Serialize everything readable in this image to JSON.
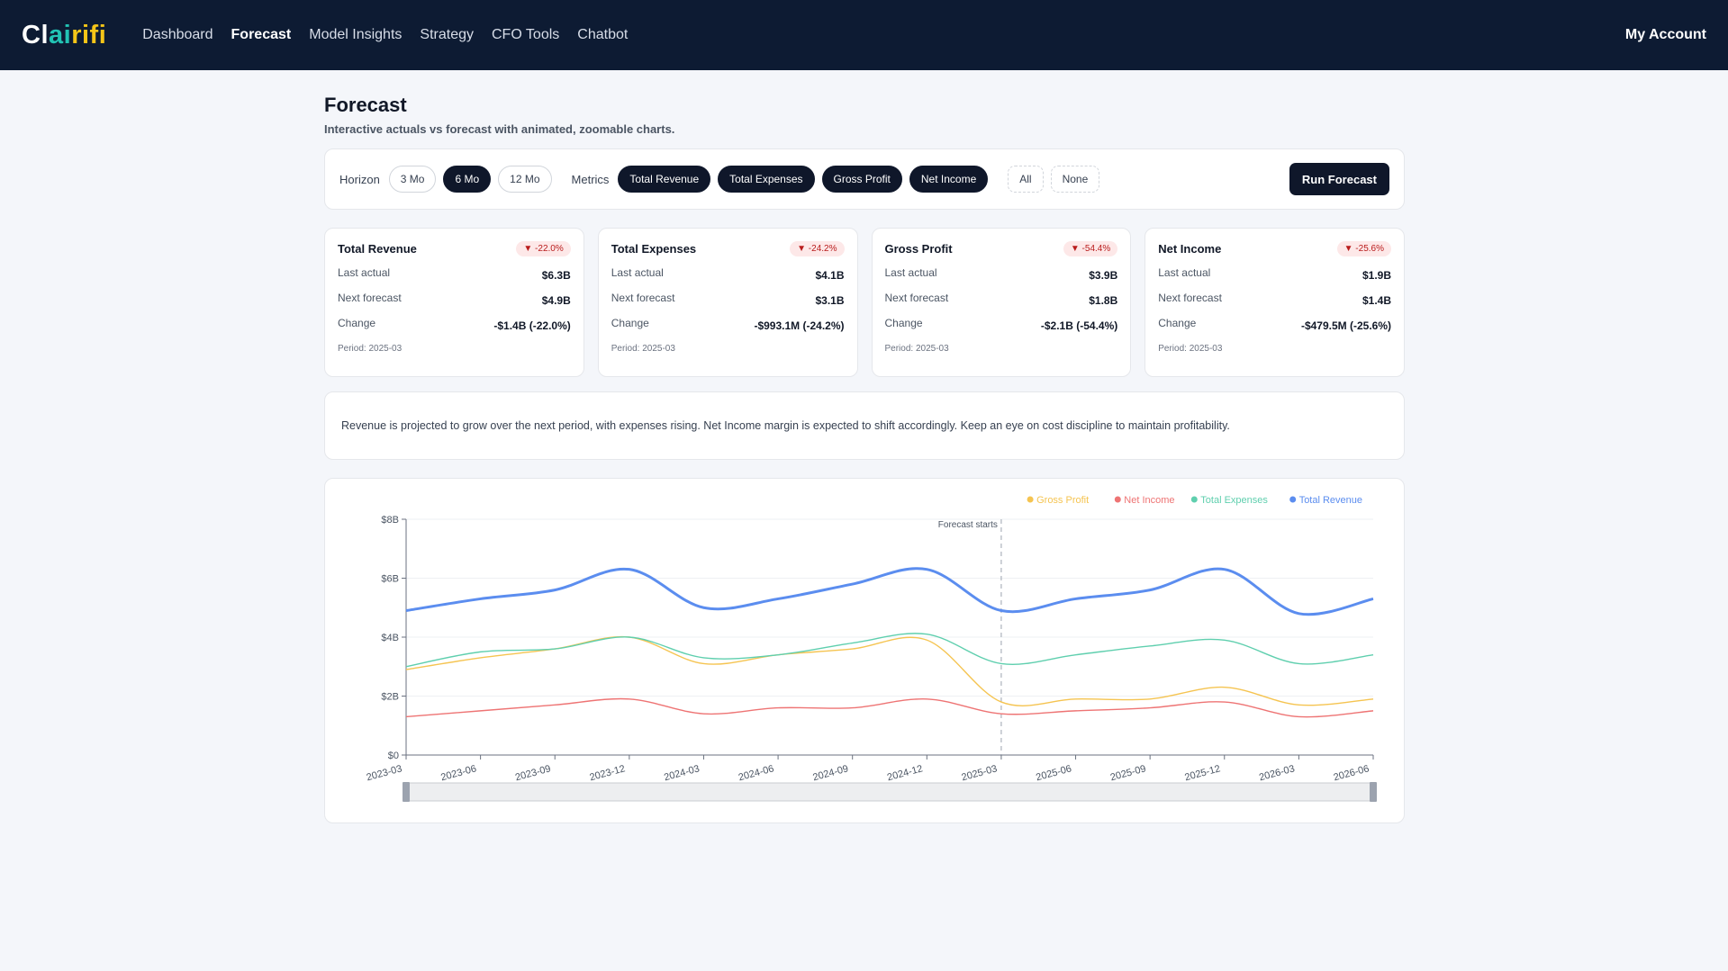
{
  "brand": {
    "part1": "Cl",
    "part2": "ai",
    "part3": "rifi"
  },
  "nav": {
    "items": [
      "Dashboard",
      "Forecast",
      "Model Insights",
      "Strategy",
      "CFO Tools",
      "Chatbot"
    ],
    "active": "Forecast",
    "account": "My Account"
  },
  "page": {
    "title": "Forecast",
    "subtitle": "Interactive actuals vs forecast with animated, zoomable charts."
  },
  "controls": {
    "horizon_label": "Horizon",
    "horizon_options": [
      "3 Mo",
      "6 Mo",
      "12 Mo"
    ],
    "horizon_selected": "6 Mo",
    "metrics_label": "Metrics",
    "metric_options": [
      "Total Revenue",
      "Total Expenses",
      "Gross Profit",
      "Net Income"
    ],
    "all_label": "All",
    "none_label": "None",
    "run_label": "Run Forecast"
  },
  "metric_cards": [
    {
      "name": "Total Revenue",
      "change_badge": "▼ -22.0%",
      "last_actual_label": "Last actual",
      "last_actual": "$6.3B",
      "next_forecast_label": "Next forecast",
      "next_forecast": "$4.9B",
      "change_label": "Change",
      "change": "-$1.4B (-22.0%)",
      "period": "Period: 2025-03"
    },
    {
      "name": "Total Expenses",
      "change_badge": "▼ -24.2%",
      "last_actual_label": "Last actual",
      "last_actual": "$4.1B",
      "next_forecast_label": "Next forecast",
      "next_forecast": "$3.1B",
      "change_label": "Change",
      "change": "-$993.1M (-24.2%)",
      "period": "Period: 2025-03"
    },
    {
      "name": "Gross Profit",
      "change_badge": "▼ -54.4%",
      "last_actual_label": "Last actual",
      "last_actual": "$3.9B",
      "next_forecast_label": "Next forecast",
      "next_forecast": "$1.8B",
      "change_label": "Change",
      "change": "-$2.1B (-54.4%)",
      "period": "Period: 2025-03"
    },
    {
      "name": "Net Income",
      "change_badge": "▼ -25.6%",
      "last_actual_label": "Last actual",
      "last_actual": "$1.9B",
      "next_forecast_label": "Next forecast",
      "next_forecast": "$1.4B",
      "change_label": "Change",
      "change": "-$479.5M (-25.6%)",
      "period": "Period: 2025-03"
    }
  ],
  "insight": "Revenue is projected to grow over the next period, with expenses rising. Net Income margin is expected to shift accordingly. Keep an eye on cost discipline to maintain profitability.",
  "colors": {
    "Total Revenue": "#5b8def",
    "Total Expenses": "#5fcfae",
    "Gross Profit": "#f5c451",
    "Net Income": "#ee7474"
  },
  "chart_data": {
    "type": "line",
    "x": [
      "2023-03",
      "2023-06",
      "2023-09",
      "2023-12",
      "2024-03",
      "2024-06",
      "2024-09",
      "2024-12",
      "2025-03",
      "2025-06",
      "2025-09",
      "2025-12",
      "2026-03",
      "2026-06"
    ],
    "ylim": [
      0,
      8
    ],
    "y_ticks": [
      "$0",
      "$2B",
      "$4B",
      "$6B",
      "$8B"
    ],
    "annotation": "Forecast starts",
    "annotation_x": "2025-03",
    "legend": [
      "Gross Profit",
      "Net Income",
      "Total Expenses",
      "Total Revenue"
    ],
    "legend_position": "top-right",
    "series": [
      {
        "name": "Total Revenue",
        "values": [
          4.9,
          5.3,
          5.6,
          6.3,
          5.0,
          5.3,
          5.8,
          6.3,
          4.9,
          5.3,
          5.6,
          6.3,
          4.8,
          5.3
        ]
      },
      {
        "name": "Total Expenses",
        "values": [
          3.0,
          3.5,
          3.6,
          4.0,
          3.3,
          3.4,
          3.8,
          4.1,
          3.1,
          3.4,
          3.7,
          3.9,
          3.1,
          3.4
        ]
      },
      {
        "name": "Gross Profit",
        "values": [
          2.9,
          3.3,
          3.6,
          4.0,
          3.1,
          3.4,
          3.6,
          3.9,
          1.8,
          1.9,
          1.9,
          2.3,
          1.7,
          1.9
        ]
      },
      {
        "name": "Net Income",
        "values": [
          1.3,
          1.5,
          1.7,
          1.9,
          1.4,
          1.6,
          1.6,
          1.9,
          1.4,
          1.5,
          1.6,
          1.8,
          1.3,
          1.5
        ]
      }
    ]
  }
}
